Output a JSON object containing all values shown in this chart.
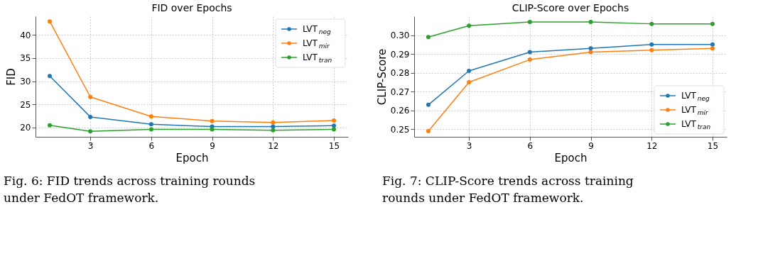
{
  "chart_data": [
    {
      "type": "line",
      "title": "FID over Epochs",
      "xlabel": "Epoch",
      "ylabel": "FID",
      "x": [
        1,
        3,
        6,
        9,
        12,
        15
      ],
      "xlim": [
        0.3,
        15.7
      ],
      "xticks": [
        3,
        6,
        9,
        12,
        15
      ],
      "ylim": [
        18,
        44
      ],
      "yticks": [
        20,
        25,
        30,
        35,
        40
      ],
      "grid": true,
      "legend": "top right",
      "marker": "circle",
      "line_style": "solid",
      "series": [
        {
          "name": "LVT$_{neg}$",
          "color": "#1f77b4",
          "values": [
            31.1,
            22.3,
            20.7,
            20.2,
            20.2,
            20.4
          ]
        },
        {
          "name": "LVT$_{mir}$",
          "color": "#ff7f0e",
          "values": [
            42.9,
            26.6,
            22.4,
            21.4,
            21.1,
            21.5
          ]
        },
        {
          "name": "LVT$_{tran}$",
          "color": "#2ca02c",
          "values": [
            20.5,
            19.2,
            19.6,
            19.6,
            19.4,
            19.6
          ]
        }
      ],
      "annotations": [
        "Fig. 6: FID trends across training rounds under FedOT framework."
      ]
    },
    {
      "type": "line",
      "title": "CLIP-Score over Epochs",
      "xlabel": "Epoch",
      "ylabel": "CLIP-Score",
      "x": [
        1,
        3,
        6,
        9,
        12,
        15
      ],
      "xlim": [
        0.3,
        15.7
      ],
      "xticks": [
        3,
        6,
        9,
        12,
        15
      ],
      "ylim": [
        0.246,
        0.31
      ],
      "yticks": [
        0.25,
        0.26,
        0.27,
        0.28,
        0.29,
        {
          "value": 0.3,
          "label": "0.30"
        }
      ],
      "grid": true,
      "legend": "bottom right",
      "marker": "circle",
      "line_style": "solid",
      "series": [
        {
          "name": "LVT$_{neg}$",
          "color": "#1f77b4",
          "values": [
            0.263,
            0.281,
            0.291,
            0.293,
            0.295,
            0.295
          ]
        },
        {
          "name": "LVT$_{mir}$",
          "color": "#ff7f0e",
          "values": [
            0.249,
            0.275,
            0.287,
            0.291,
            0.292,
            0.293
          ]
        },
        {
          "name": "LVT$_{tran}$",
          "color": "#2ca02c",
          "values": [
            0.299,
            0.305,
            0.307,
            0.307,
            0.306,
            0.306
          ]
        }
      ],
      "annotations": [
        "Fig. 7: CLIP-Score trends across training rounds under FedOT framework."
      ]
    }
  ]
}
